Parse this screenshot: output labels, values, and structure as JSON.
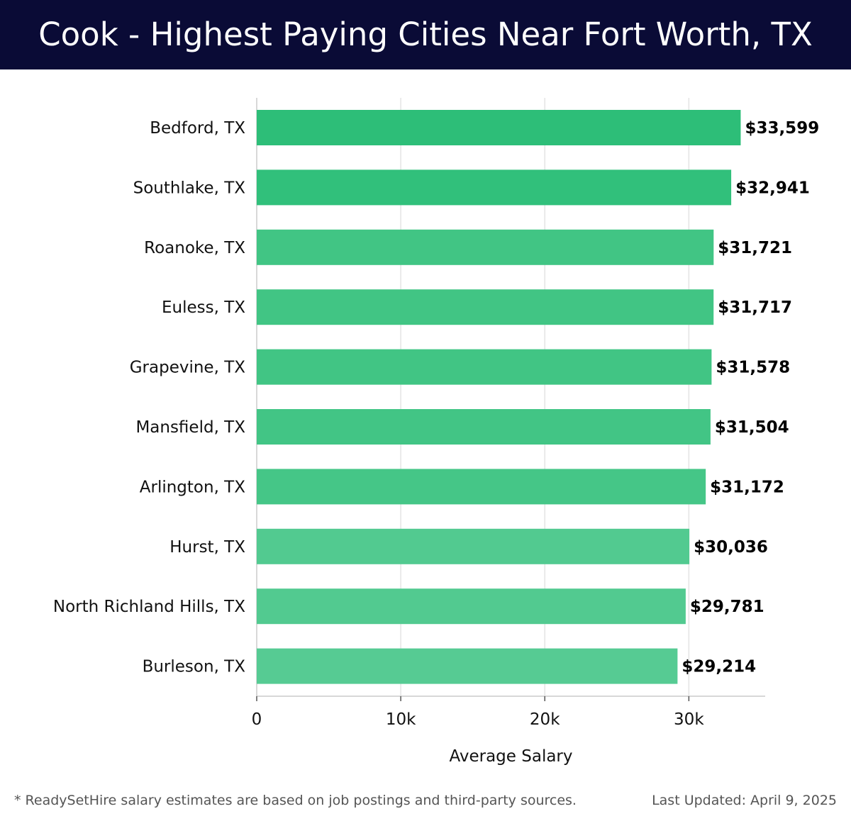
{
  "header": {
    "title": "Cook - Highest Paying Cities Near Fort Worth, TX"
  },
  "footer": {
    "note": "* ReadySetHire salary estimates are based on job postings and third-party sources.",
    "updated": "Last Updated: April 9, 2025"
  },
  "chart_data": {
    "type": "bar",
    "orientation": "horizontal",
    "title": "Cook - Highest Paying Cities Near Fort Worth, TX",
    "xlabel": "Average Salary",
    "ylabel": "",
    "xlim": [
      0,
      35300
    ],
    "xticks": [
      0,
      10000,
      20000,
      30000
    ],
    "xtick_labels": [
      "0",
      "10k",
      "20k",
      "30k"
    ],
    "grid": true,
    "categories": [
      "Bedford, TX",
      "Southlake, TX",
      "Roanoke, TX",
      "Euless, TX",
      "Grapevine, TX",
      "Mansfield, TX",
      "Arlington, TX",
      "Hurst, TX",
      "North Richland Hills, TX",
      "Burleson, TX"
    ],
    "values": [
      33599,
      32941,
      31721,
      31717,
      31578,
      31504,
      31172,
      30036,
      29781,
      29214
    ],
    "value_labels": [
      "$33,599",
      "$32,941",
      "$31,721",
      "$31,717",
      "$31,578",
      "$31,504",
      "$31,172",
      "$30,036",
      "$29,781",
      "$29,214"
    ],
    "bar_colors": [
      "#2dbe78",
      "#31c07b",
      "#41c584",
      "#41c584",
      "#41c584",
      "#42c585",
      "#45c687",
      "#52ca90",
      "#52ca90",
      "#56cb93"
    ],
    "grid_color": "#e4e4e4",
    "axis_color": "#cccccc"
  }
}
